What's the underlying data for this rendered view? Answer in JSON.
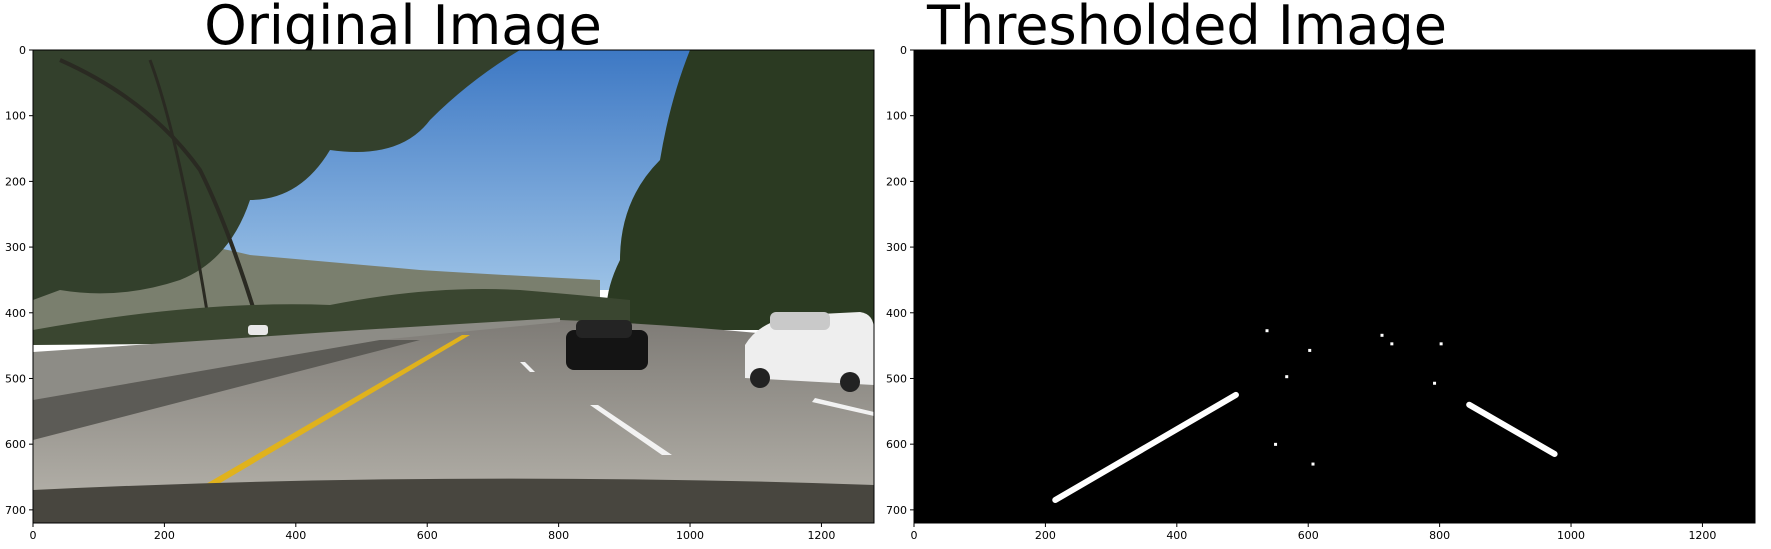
{
  "chart_data": [
    {
      "type": "image",
      "title": "Original Image",
      "xlim": [
        0,
        1280
      ],
      "ylim": [
        720,
        0
      ],
      "xticks": [
        0,
        200,
        400,
        600,
        800,
        1000,
        1200
      ],
      "yticks": [
        0,
        100,
        200,
        300,
        400,
        500,
        600,
        700
      ],
      "colors": {
        "sky": "#5f95d3",
        "trees": "#2f3b26",
        "road": "#a8a49c",
        "lane_line": "#e0b21c"
      }
    },
    {
      "type": "image",
      "title": "Thresholded Image",
      "xlim": [
        0,
        1280
      ],
      "ylim": [
        720,
        0
      ],
      "xticks": [
        0,
        200,
        400,
        600,
        800,
        1000,
        1200
      ],
      "yticks": [
        0,
        100,
        200,
        300,
        400,
        500,
        600,
        700
      ],
      "colors": {
        "background": "#000000",
        "lane_pixels": "#ffffff"
      },
      "lane_segments": [
        {
          "x": [
            215,
            490
          ],
          "y": [
            685,
            525
          ]
        },
        {
          "x": [
            845,
            975
          ],
          "y": [
            540,
            615
          ]
        }
      ]
    }
  ]
}
